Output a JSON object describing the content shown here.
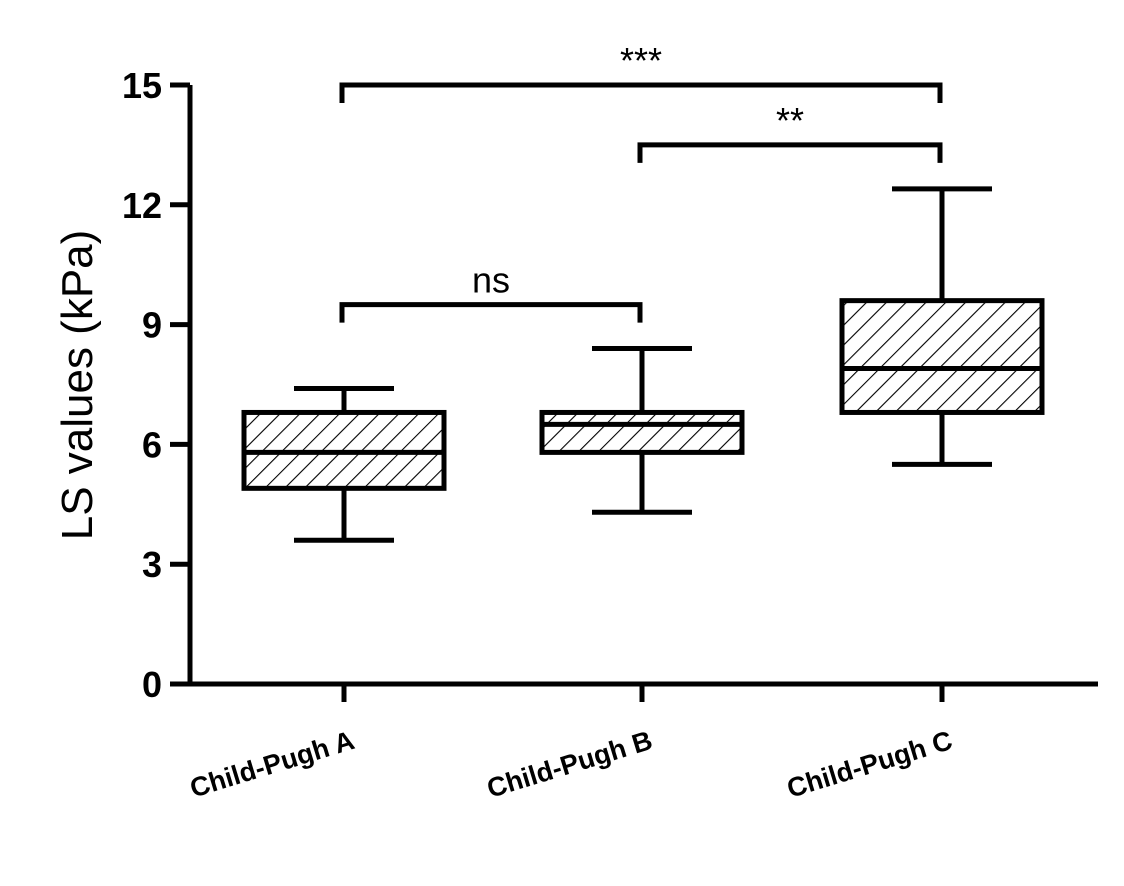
{
  "chart_data": {
    "type": "box",
    "title": "",
    "xlabel": "",
    "ylabel": "LS values (kPa)",
    "ylim": [
      0,
      15
    ],
    "yticks": [
      0,
      3,
      6,
      9,
      12,
      15
    ],
    "grid": false,
    "categories": [
      "Child-Pugh A",
      "Child-Pugh B",
      "Child-Pugh C"
    ],
    "boxes": [
      {
        "category": "Child-Pugh A",
        "min": 3.6,
        "q1": 4.9,
        "median": 5.8,
        "q3": 6.8,
        "max": 7.4
      },
      {
        "category": "Child-Pugh B",
        "min": 4.3,
        "q1": 5.8,
        "median": 6.5,
        "q3": 6.8,
        "max": 8.4
      },
      {
        "category": "Child-Pugh C",
        "min": 5.5,
        "q1": 6.8,
        "median": 7.9,
        "q3": 9.6,
        "max": 12.4
      }
    ],
    "annotations": [
      {
        "from": "Child-Pugh A",
        "to": "Child-Pugh B",
        "label": "ns",
        "y": 9.5
      },
      {
        "from": "Child-Pugh B",
        "to": "Child-Pugh C",
        "label": "**",
        "y": 13.5
      },
      {
        "from": "Child-Pugh A",
        "to": "Child-Pugh C",
        "label": "***",
        "y": 15.0
      }
    ],
    "colors": {
      "stroke": "#000000",
      "hatch": "#000000",
      "background": "#ffffff"
    }
  }
}
